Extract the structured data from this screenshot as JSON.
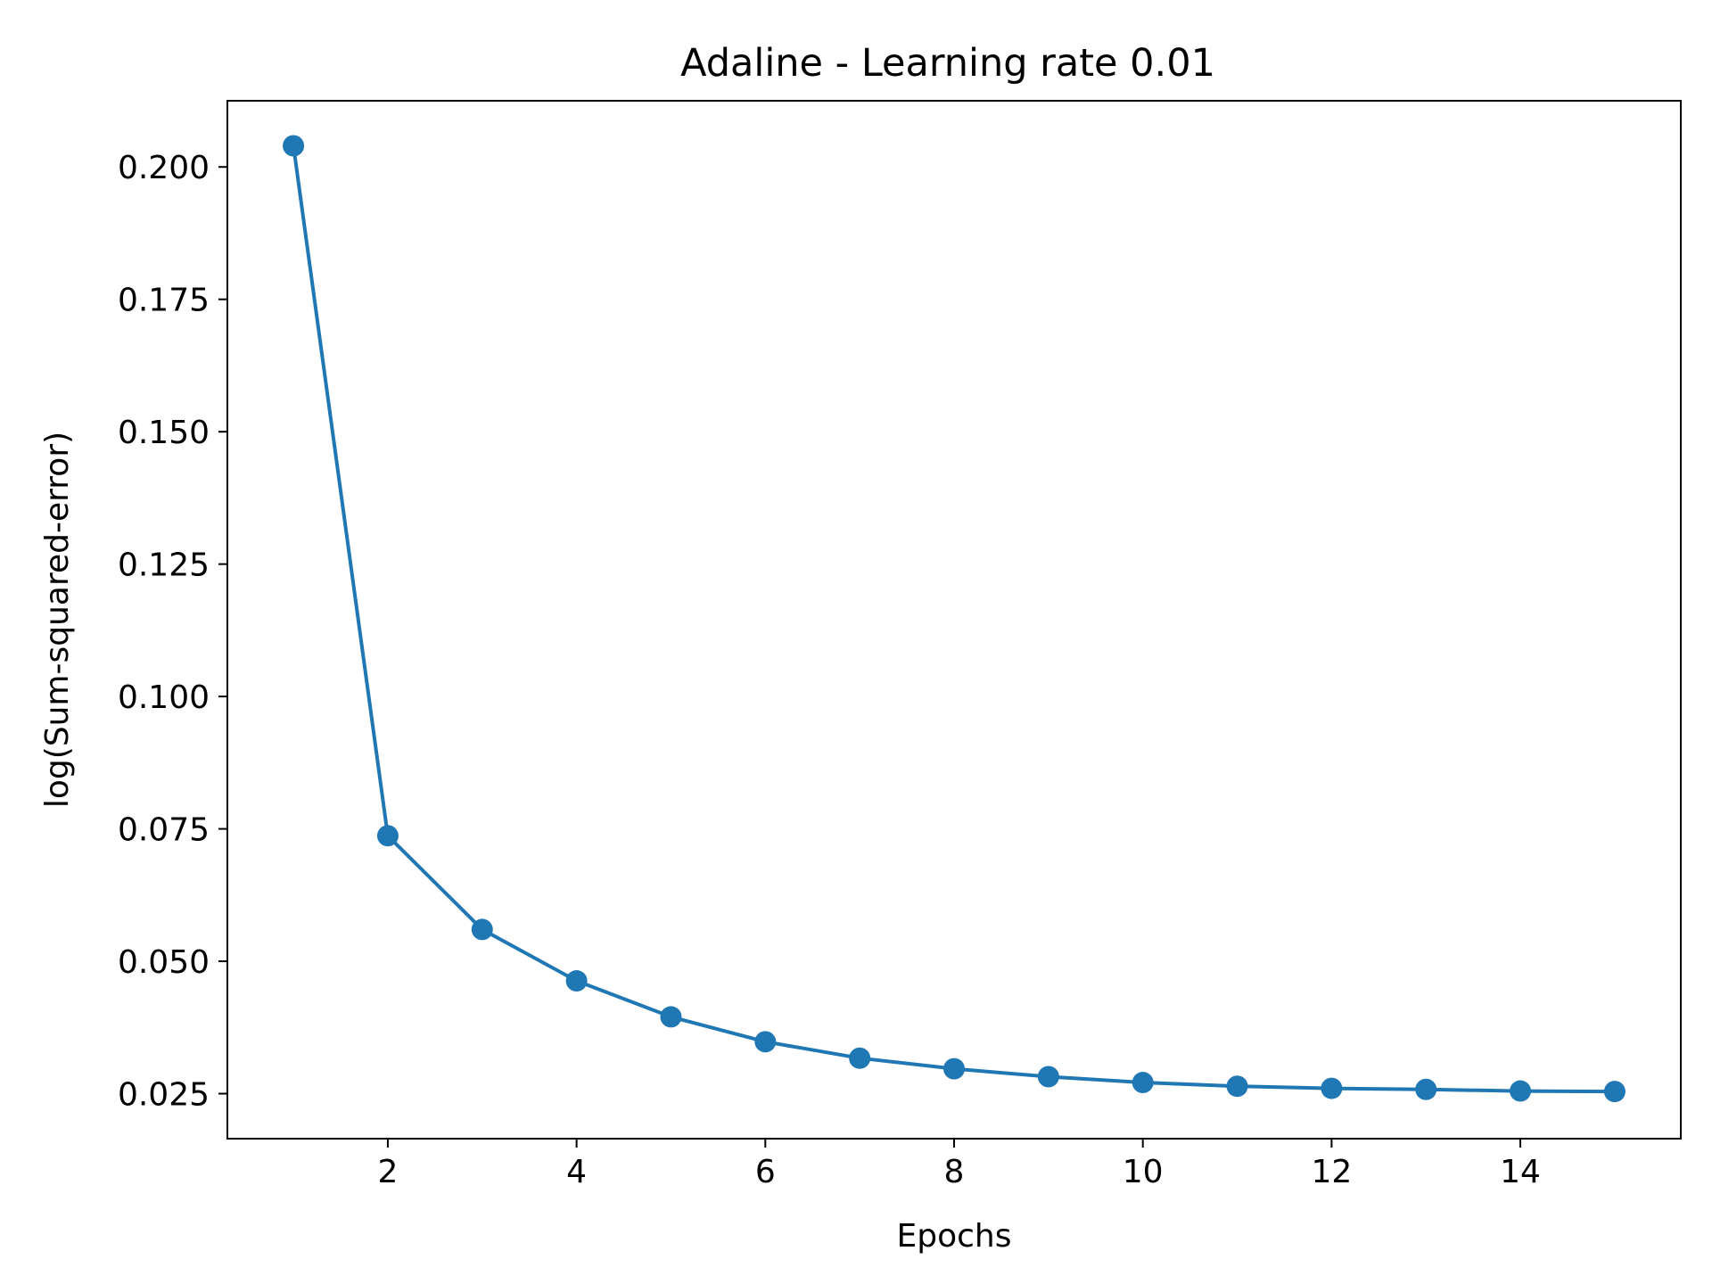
{
  "chart_data": {
    "type": "line",
    "title": "Adaline - Learning rate 0.01",
    "xlabel": "Epochs",
    "ylabel": "log(Sum-squared-error)",
    "xlim": [
      0.3,
      15.7
    ],
    "ylim": [
      0.0165,
      0.2125
    ],
    "xticks": [
      2,
      4,
      6,
      8,
      10,
      12,
      14
    ],
    "xtick_labels": [
      "2",
      "4",
      "6",
      "8",
      "10",
      "12",
      "14"
    ],
    "yticks": [
      0.025,
      0.05,
      0.075,
      0.1,
      0.125,
      0.15,
      0.175,
      0.2
    ],
    "ytick_labels": [
      "0.025",
      "0.050",
      "0.075",
      "0.100",
      "0.125",
      "0.150",
      "0.175",
      "0.200"
    ],
    "grid": false,
    "marker": "circle",
    "series": [
      {
        "x": [
          1,
          2,
          3,
          4,
          5,
          6,
          7,
          8,
          9,
          10,
          11,
          12,
          13,
          14,
          15
        ],
        "values": [
          0.204,
          0.0737,
          0.056,
          0.0463,
          0.0395,
          0.0348,
          0.0317,
          0.0297,
          0.0282,
          0.0271,
          0.0264,
          0.026,
          0.0258,
          0.0255,
          0.0254
        ],
        "color": "#1f77b4"
      }
    ]
  }
}
